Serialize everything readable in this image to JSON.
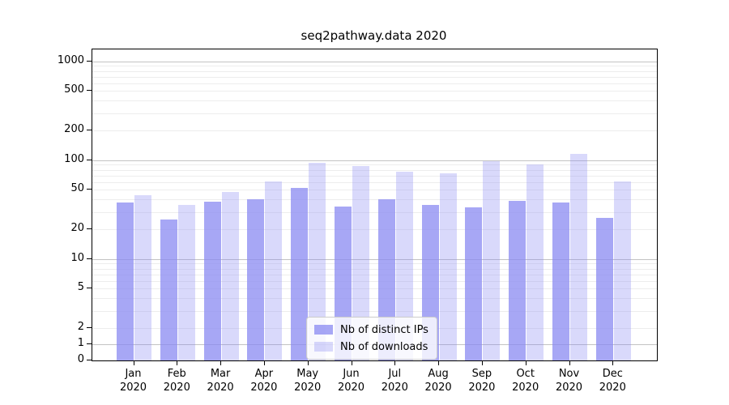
{
  "title": "seq2pathway.data 2020",
  "chart_data": {
    "type": "bar",
    "title": "seq2pathway.data 2020",
    "categories": [
      "Jan",
      "Feb",
      "Mar",
      "Apr",
      "May",
      "Jun",
      "Jul",
      "Aug",
      "Sep",
      "Oct",
      "Nov",
      "Dec"
    ],
    "category_year": "2020",
    "series": [
      {
        "name": "Nb of distinct IPs",
        "color": "rgba(138,138,242,0.75)",
        "values": [
          37,
          25,
          38,
          40,
          52,
          34,
          40,
          35,
          33,
          39,
          37,
          26
        ]
      },
      {
        "name": "Nb of downloads",
        "color": "rgba(138,138,242,0.32)",
        "values": [
          44,
          35,
          48,
          61,
          94,
          88,
          77,
          74,
          97,
          90,
          115,
          61
        ]
      }
    ],
    "xlabel": "",
    "ylabel": "",
    "yscale": "symlog",
    "y_ticks": [
      1000,
      500,
      200,
      100,
      50,
      20,
      10,
      5,
      2,
      1,
      0
    ],
    "ylim": [
      0,
      1320
    ],
    "grid": true,
    "legend_position": "lower center"
  },
  "colors": {
    "bar_distinct_ips": "rgba(138,138,242,0.75)",
    "bar_downloads": "rgba(138,138,242,0.32)",
    "grid_major": "#c3c3c3",
    "grid_minor": "#ededed",
    "axis": "#000000",
    "text": "#000000",
    "legend_border": "#cccccc",
    "legend_bg": "rgba(255,255,255,0.8)"
  }
}
